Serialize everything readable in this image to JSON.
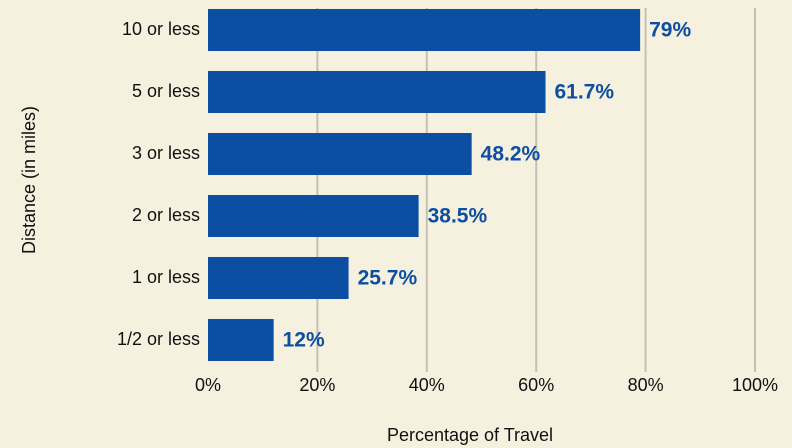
{
  "chart_data": {
    "type": "bar",
    "orientation": "horizontal",
    "x_label": "Percentage of Travel",
    "y_label": "Distance (in miles)",
    "categories": [
      "10 or less",
      "5 or less",
      "3 or less",
      "2 or less",
      "1 or less",
      "1/2 or less"
    ],
    "values": [
      79,
      61.7,
      48.2,
      38.5,
      25.7,
      12
    ],
    "value_labels": [
      "79%",
      "61.7%",
      "48.2%",
      "38.5%",
      "25.7%",
      "12%"
    ],
    "color": "#0b4ea2",
    "xlim": [
      0,
      100
    ],
    "xticks": [
      {
        "value": 0,
        "label": "0%"
      },
      {
        "value": 20,
        "label": "20%"
      },
      {
        "value": 40,
        "label": "40%"
      },
      {
        "value": 60,
        "label": "60%"
      },
      {
        "value": 80,
        "label": "80%"
      },
      {
        "value": 100,
        "label": "100%"
      }
    ],
    "grid": true
  }
}
